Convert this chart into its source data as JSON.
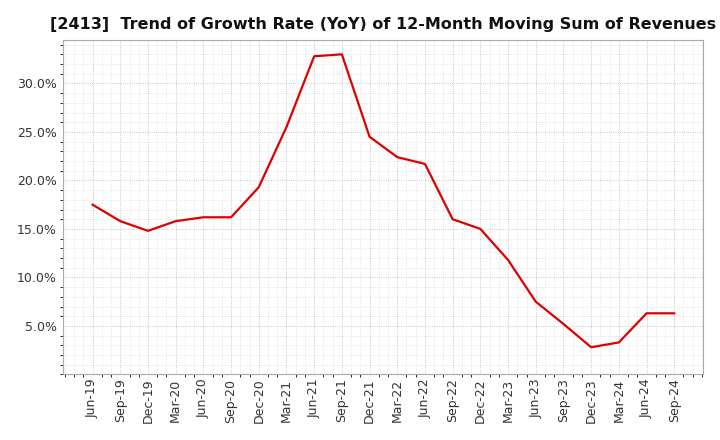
{
  "title": "[2413]  Trend of Growth Rate (YoY) of 12-Month Moving Sum of Revenues",
  "line_color": "#dd0000",
  "background_color": "#ffffff",
  "plot_bg_color": "#ffffff",
  "grid_color": "#999999",
  "x_labels": [
    "Jun-19",
    "Sep-19",
    "Dec-19",
    "Mar-20",
    "Jun-20",
    "Sep-20",
    "Dec-20",
    "Mar-21",
    "Jun-21",
    "Sep-21",
    "Dec-21",
    "Mar-22",
    "Jun-22",
    "Sep-22",
    "Dec-22",
    "Mar-23",
    "Jun-23",
    "Sep-23",
    "Dec-23",
    "Mar-24",
    "Jun-24",
    "Sep-24"
  ],
  "y_values": [
    0.175,
    0.158,
    0.148,
    0.158,
    0.162,
    0.162,
    0.193,
    0.255,
    0.328,
    0.33,
    0.245,
    0.224,
    0.217,
    0.16,
    0.15,
    0.118,
    0.075,
    0.052,
    0.028,
    0.033,
    0.063,
    0.063
  ],
  "yticks": [
    0.05,
    0.1,
    0.15,
    0.2,
    0.25,
    0.3
  ],
  "ylim": [
    0.0,
    0.345
  ],
  "title_fontsize": 11.5,
  "tick_fontsize": 9
}
